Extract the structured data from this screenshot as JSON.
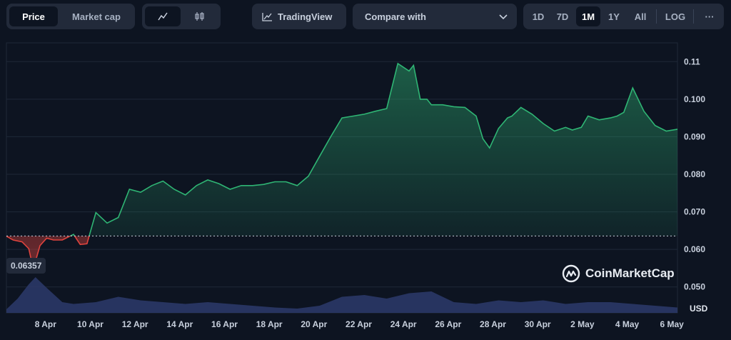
{
  "toolbar": {
    "price_tab": "Price",
    "marketcap_tab": "Market cap",
    "tradingview_label": "TradingView",
    "compare_label": "Compare with",
    "ranges": [
      "1D",
      "7D",
      "1M",
      "1Y",
      "All"
    ],
    "active_range": "1M",
    "log_label": "LOG",
    "more_label": "···"
  },
  "price_marker": "0.06357",
  "currency_label": "USD",
  "brand": "CoinMarketCap",
  "colors": {
    "up": "#2fb574",
    "down": "#e0443e",
    "volume": "#2d3a6b",
    "background": "#0d1421"
  },
  "chart_data": {
    "type": "area",
    "title": "",
    "xlabel": "",
    "ylabel": "",
    "y_unit": "USD",
    "ylim": [
      0.045,
      0.115
    ],
    "yticks": [
      0.05,
      0.06,
      0.07,
      0.08,
      0.09,
      0.1,
      0.11
    ],
    "ytick_labels": [
      "0.050",
      "0.060",
      "0.070",
      "0.080",
      "0.090",
      "0.100",
      "0.11"
    ],
    "xticks": [
      "8 Apr",
      "10 Apr",
      "12 Apr",
      "14 Apr",
      "16 Apr",
      "18 Apr",
      "20 Apr",
      "22 Apr",
      "24 Apr",
      "26 Apr",
      "28 Apr",
      "30 Apr",
      "2 May",
      "4 May",
      "6 May"
    ],
    "baseline": 0.06357,
    "grid": true,
    "series": [
      {
        "x_days": [
          0,
          0.3,
          0.7,
          1.0,
          1.2,
          1.5,
          1.8,
          2.1,
          2.5,
          3.0,
          3.3,
          3.6,
          4.0,
          4.5,
          5.0,
          5.5,
          6.0,
          6.5,
          7.0,
          7.5,
          8.0,
          8.5,
          9.0,
          9.5,
          10.0,
          10.5,
          11.0,
          11.5,
          12.0,
          12.5,
          13.0,
          13.5,
          14.0,
          14.5,
          15.0,
          15.5,
          16.0,
          16.5,
          17.0,
          17.5,
          18.0,
          18.2,
          18.5,
          18.8,
          19.0,
          19.5,
          20.0,
          20.5,
          21.0,
          21.3,
          21.6,
          22.0,
          22.4,
          22.6,
          23.0,
          23.5,
          24.0,
          24.5,
          25.0,
          25.3,
          25.7,
          26.0,
          26.5,
          27.0,
          27.3,
          27.6,
          28.0,
          28.5,
          29.0,
          29.5,
          30.0
        ],
        "values": [
          0.0635,
          0.0625,
          0.062,
          0.0602,
          0.0548,
          0.061,
          0.063,
          0.0625,
          0.0625,
          0.064,
          0.0613,
          0.0615,
          0.0698,
          0.067,
          0.0685,
          0.076,
          0.0752,
          0.077,
          0.0782,
          0.076,
          0.0745,
          0.077,
          0.0785,
          0.0775,
          0.076,
          0.077,
          0.077,
          0.0773,
          0.078,
          0.078,
          0.077,
          0.0795,
          0.0848,
          0.09,
          0.095,
          0.0955,
          0.096,
          0.0968,
          0.0975,
          0.1095,
          0.1075,
          0.109,
          0.1,
          0.1,
          0.0985,
          0.0985,
          0.098,
          0.0978,
          0.0955,
          0.0895,
          0.087,
          0.0922,
          0.095,
          0.0955,
          0.0978,
          0.096,
          0.0935,
          0.0915,
          0.0925,
          0.0918,
          0.0925,
          0.0955,
          0.0945,
          0.095,
          0.0955,
          0.0965,
          0.103,
          0.0968,
          0.093,
          0.0915,
          0.092
        ]
      }
    ],
    "volume": {
      "x_days": [
        0,
        0.5,
        1.0,
        1.3,
        1.8,
        2.5,
        3.0,
        4.0,
        5.0,
        6.0,
        7.0,
        8.0,
        9.0,
        10.0,
        11.0,
        12.0,
        13.0,
        14.0,
        15.0,
        16.0,
        17.0,
        18.0,
        19.0,
        20.0,
        21.0,
        22.0,
        23.0,
        24.0,
        25.0,
        26.0,
        27.0,
        28.0,
        29.0,
        30.0
      ],
      "relative": [
        0.1,
        0.4,
        0.8,
        1.0,
        0.7,
        0.3,
        0.25,
        0.3,
        0.45,
        0.35,
        0.3,
        0.25,
        0.3,
        0.25,
        0.2,
        0.15,
        0.12,
        0.2,
        0.45,
        0.5,
        0.4,
        0.55,
        0.6,
        0.3,
        0.25,
        0.35,
        0.3,
        0.35,
        0.25,
        0.3,
        0.3,
        0.25,
        0.2,
        0.15
      ]
    }
  }
}
